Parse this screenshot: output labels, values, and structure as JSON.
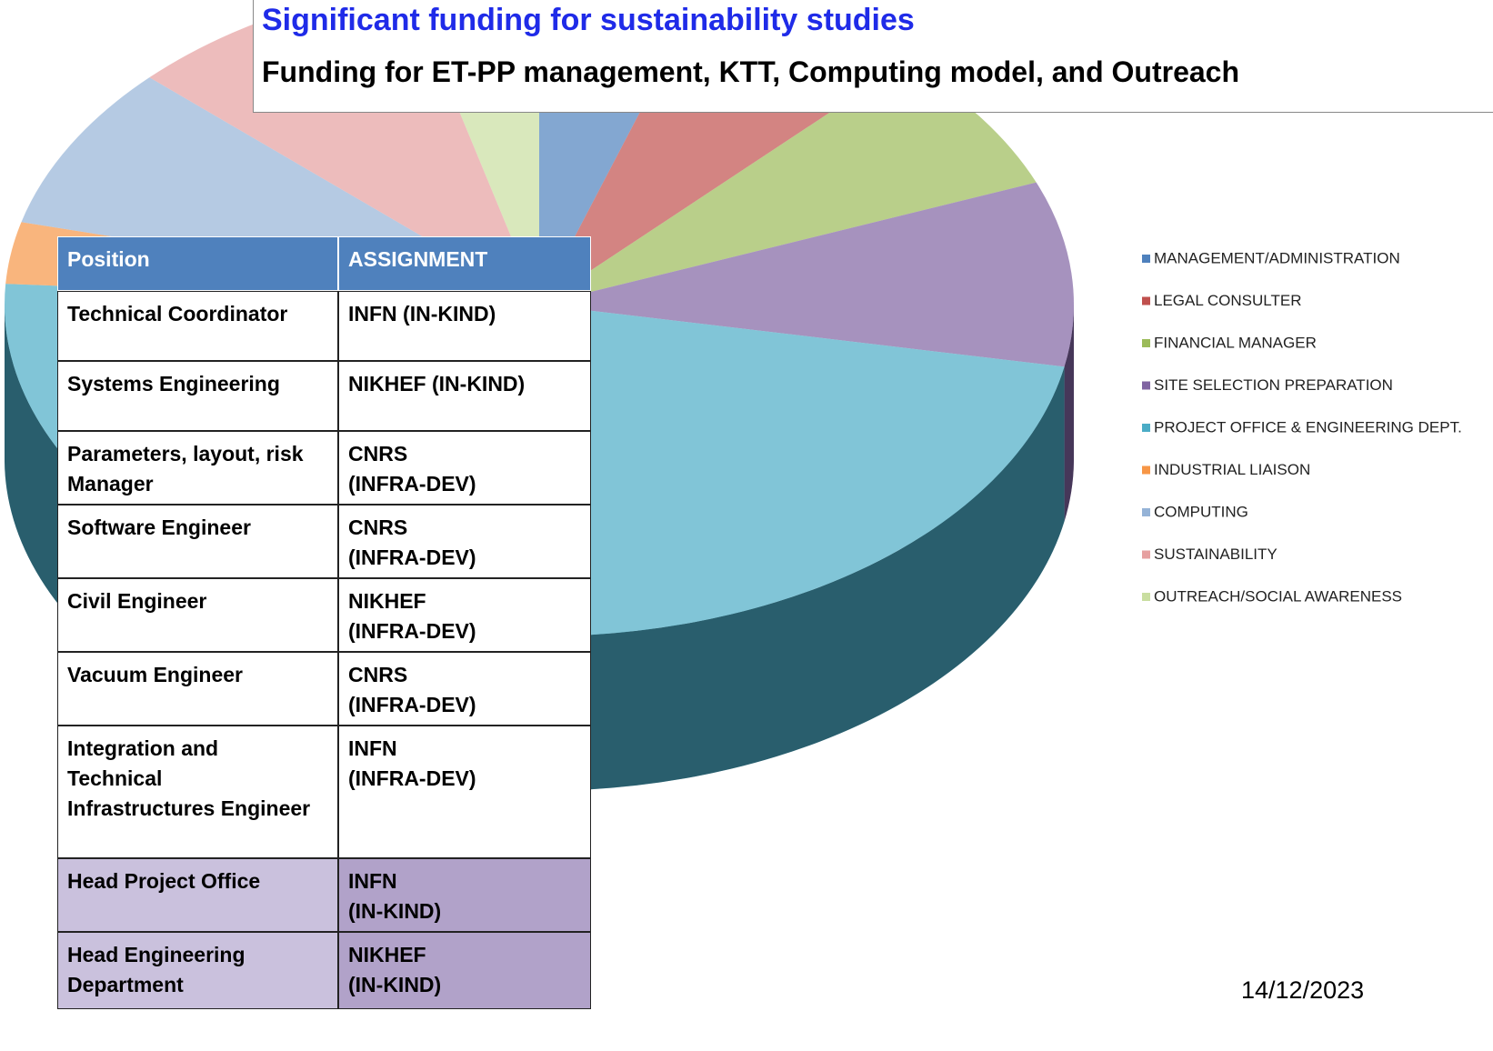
{
  "heading": {
    "line1": "Significant funding for sustainability studies",
    "line2": "Funding for ET-PP management, KTT, Computing model, and Outreach"
  },
  "chart_data": {
    "type": "pie",
    "categories": [
      "MANAGEMENT/ADMINISTRATION",
      "LEGAL CONSULTER",
      "FINANCIAL MANAGER",
      "SITE SELECTION PREPARATION",
      "PROJECT OFFICE & ENGINEERING DEPT.",
      "INDUSTRIAL LIAISON",
      "COMPUTING",
      "SUSTAINABILITY",
      "OUTREACH/SOCIAL AWARENESS"
    ],
    "values": [
      5,
      7,
      7,
      9,
      48,
      3,
      8,
      9,
      4
    ],
    "colors": [
      "#4f81bd",
      "#c0504d",
      "#9bbb59",
      "#8064a2",
      "#4bacc6",
      "#f79646",
      "#95b3d7",
      "#e6a0a0",
      "#c9dea0"
    ],
    "legend": "right"
  },
  "table": {
    "header": [
      "Position",
      "ASSIGNMENT"
    ],
    "rows": [
      [
        "Technical Coordinator",
        "INFN (IN-KIND)"
      ],
      [
        "Systems Engineering",
        "NIKHEF (IN-KIND)"
      ],
      [
        "Parameters, layout, risk Manager",
        "CNRS\n(INFRA-DEV)"
      ],
      [
        "Software Engineer",
        "CNRS\n(INFRA-DEV)"
      ],
      [
        "Civil Engineer",
        "NIKHEF\n(INFRA-DEV)"
      ],
      [
        "Vacuum Engineer",
        "CNRS\n(INFRA-DEV)"
      ],
      [
        "Integration and\nTechnical\nInfrastructures Engineer",
        "INFN\n(INFRA-DEV)"
      ],
      [
        "Head  Project Office",
        "INFN\n(IN-KIND)"
      ],
      [
        "Head Engineering\nDepartment",
        "NIKHEF\n(IN-KIND)"
      ]
    ]
  },
  "date": "14/12/2023"
}
